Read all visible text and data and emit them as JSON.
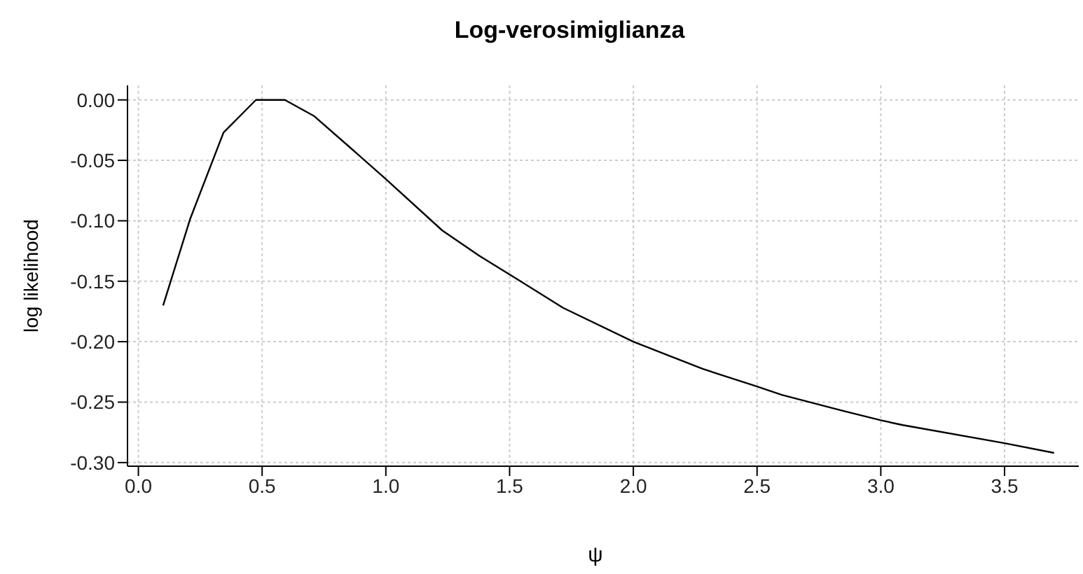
{
  "chart_data": {
    "type": "line",
    "title": "Log-verosimiglianza",
    "xlabel": "ψ",
    "ylabel": "log likelihood",
    "x": [
      0.1,
      0.21,
      0.344,
      0.475,
      0.592,
      0.711,
      0.87,
      1.0,
      1.228,
      1.378,
      1.528,
      1.716,
      2.0,
      2.28,
      2.5,
      2.6,
      2.844,
      3.0,
      3.089,
      3.5,
      3.7
    ],
    "series": [
      {
        "color": "#000000",
        "values": [
          -0.17,
          -0.098,
          -0.027,
          0,
          0,
          -0.0135,
          -0.042,
          -0.0655,
          -0.108,
          -0.129,
          -0.148,
          -0.172,
          -0.2,
          -0.2225,
          -0.237,
          -0.244,
          -0.257,
          -0.265,
          -0.269,
          -0.284,
          -0.292
        ]
      }
    ],
    "xlim": [
      -0.044,
      3.8
    ],
    "ylim": [
      -0.303,
      0.012
    ],
    "xticks": [
      {
        "value": 0,
        "label": "0.0"
      },
      0.5,
      {
        "value": 1,
        "label": "1.0"
      },
      1.5,
      {
        "value": 2,
        "label": "2.0"
      },
      2.5,
      {
        "value": 3,
        "label": "3.0"
      },
      3.5
    ],
    "yticks": [
      {
        "value": 0,
        "label": "0.00"
      },
      -0.05,
      {
        "value": -0.1,
        "label": "-0.10"
      },
      -0.15,
      {
        "value": -0.2,
        "label": "-0.20"
      },
      -0.25,
      {
        "value": -0.3,
        "label": "-0.30"
      }
    ],
    "grid": true,
    "marker": "none",
    "line_style": "solid",
    "legend": false
  }
}
